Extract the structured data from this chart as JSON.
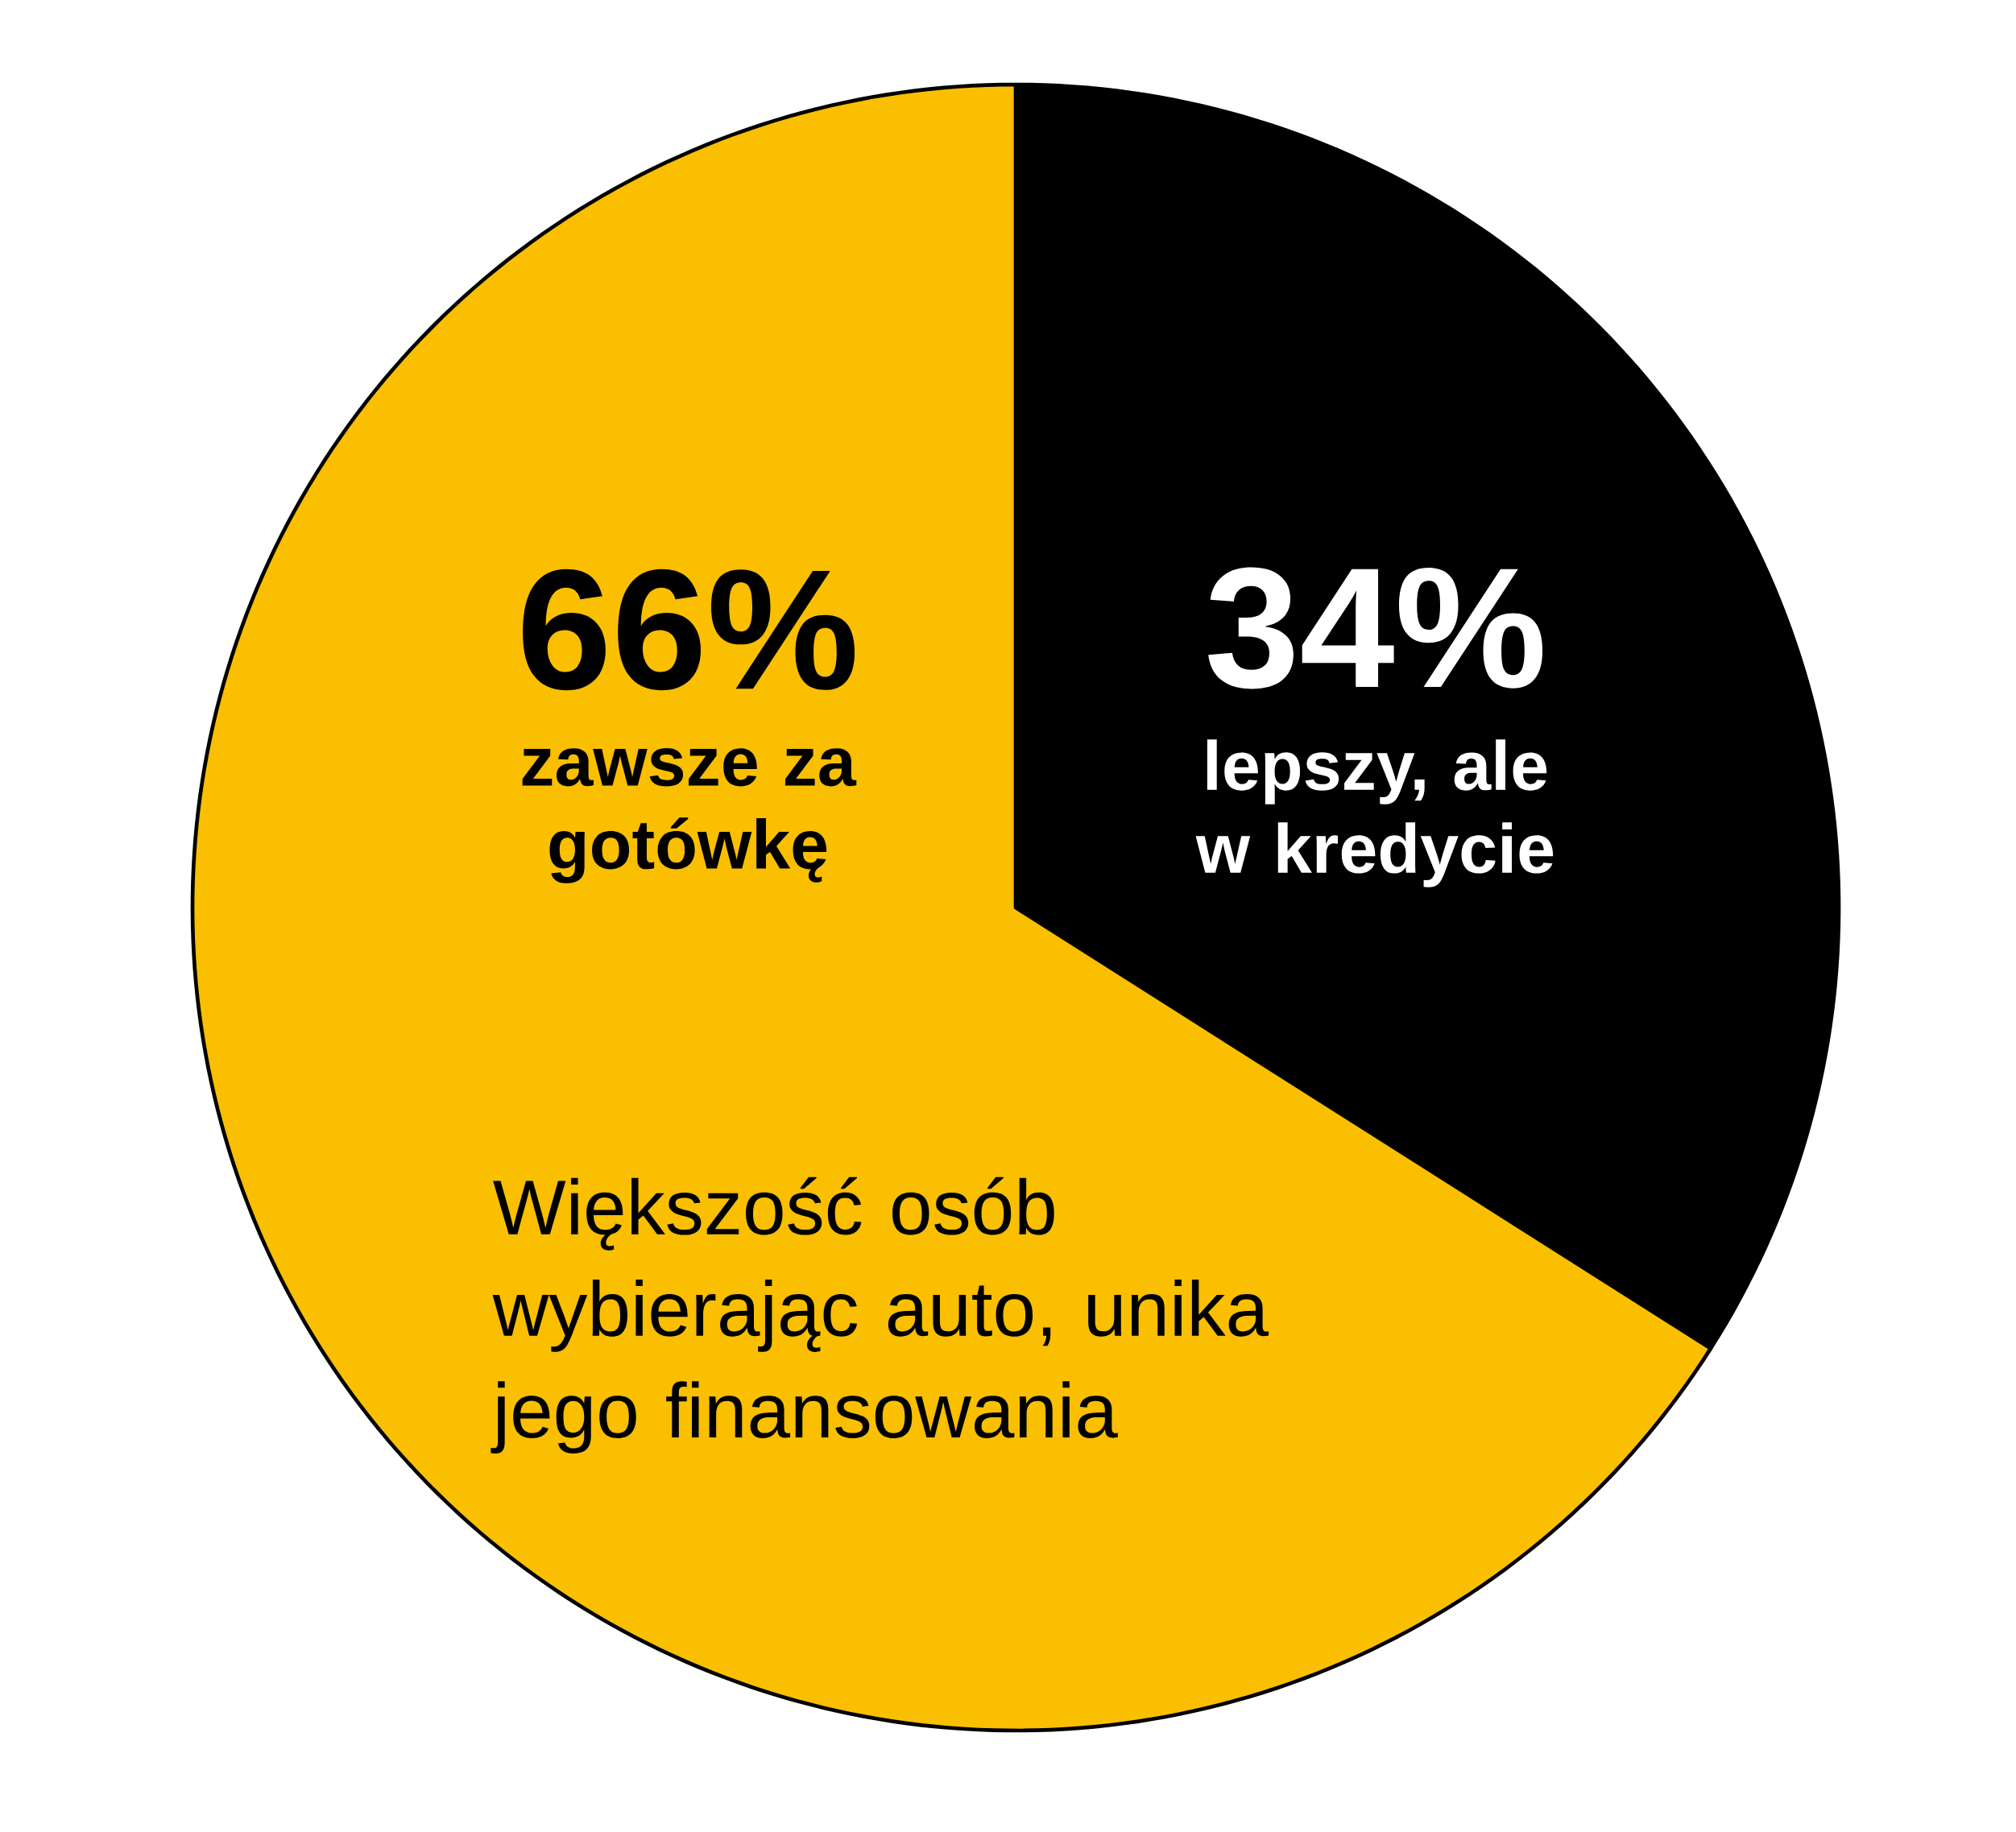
{
  "chart_data": {
    "type": "pie",
    "categories": [
      "lepszy, ale w kredycie",
      "zawsze za gotówkę"
    ],
    "values": [
      34,
      66
    ],
    "colors": [
      "#000000",
      "#f9bf00"
    ],
    "value_labels": [
      "34%",
      "66%"
    ],
    "annotations": [
      "Większość osób wybierając auto, unika jego finansowania"
    ]
  }
}
